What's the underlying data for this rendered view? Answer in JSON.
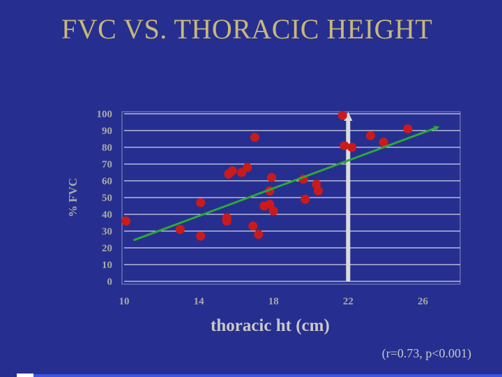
{
  "slide": {
    "title": "FVC VS. THORACIC HEIGHT",
    "stats_note": "(r=0.73, p<0.001)"
  },
  "colors": {
    "background": "#262f8f",
    "title": "#c9b878",
    "plot_area": "#262f8f",
    "grid": "#ffffff",
    "points": "#cc1a1a",
    "trendline": "#2ea836",
    "marker_line": "#dcdcdc"
  },
  "chart_data": {
    "type": "scatter",
    "title": "FVC VS. THORACIC HEIGHT",
    "xlabel": "thoracic ht (cm)",
    "ylabel": "% FVC",
    "xlim": [
      10,
      28
    ],
    "ylim": [
      0,
      100
    ],
    "xticks": [
      10,
      14,
      18,
      22,
      26
    ],
    "yticks": [
      0,
      10,
      20,
      30,
      40,
      50,
      60,
      70,
      80,
      90,
      100
    ],
    "grid": "horizontal",
    "series": [
      {
        "points": [
          {
            "x": 10.1,
            "y": 36
          },
          {
            "x": 13.0,
            "y": 31
          },
          {
            "x": 14.1,
            "y": 47
          },
          {
            "x": 14.1,
            "y": 27
          },
          {
            "x": 15.5,
            "y": 38
          },
          {
            "x": 15.5,
            "y": 36
          },
          {
            "x": 15.6,
            "y": 64
          },
          {
            "x": 15.8,
            "y": 66
          },
          {
            "x": 16.3,
            "y": 65
          },
          {
            "x": 16.6,
            "y": 68
          },
          {
            "x": 16.9,
            "y": 33
          },
          {
            "x": 17.0,
            "y": 86
          },
          {
            "x": 17.2,
            "y": 28
          },
          {
            "x": 17.5,
            "y": 45
          },
          {
            "x": 17.8,
            "y": 46
          },
          {
            "x": 17.8,
            "y": 54
          },
          {
            "x": 17.9,
            "y": 62
          },
          {
            "x": 18.0,
            "y": 42
          },
          {
            "x": 19.6,
            "y": 61
          },
          {
            "x": 19.7,
            "y": 49
          },
          {
            "x": 20.3,
            "y": 58
          },
          {
            "x": 20.4,
            "y": 54
          },
          {
            "x": 21.7,
            "y": 99
          },
          {
            "x": 21.8,
            "y": 81
          },
          {
            "x": 22.2,
            "y": 80
          },
          {
            "x": 23.2,
            "y": 87
          },
          {
            "x": 23.9,
            "y": 83
          },
          {
            "x": 25.2,
            "y": 91
          }
        ]
      }
    ],
    "trendline": {
      "x": [
        10.5,
        26.8
      ],
      "y": [
        24.5,
        92
      ]
    },
    "marker_arrow": {
      "x": 22,
      "y_from": 0,
      "y_to": 100
    }
  }
}
